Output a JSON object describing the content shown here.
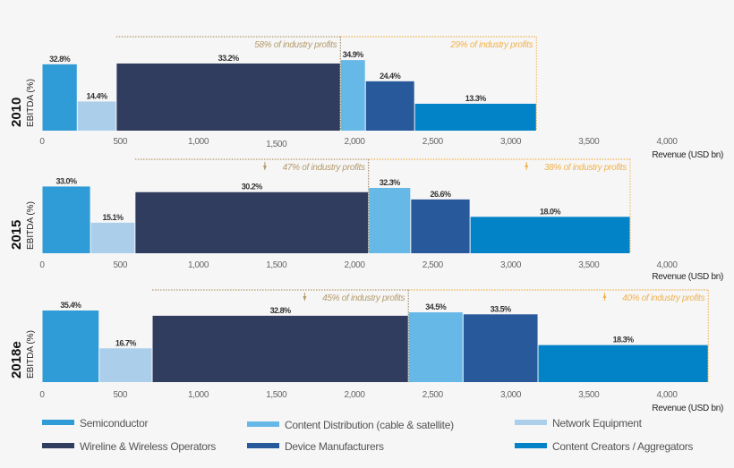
{
  "chart_data": {
    "type": "bar",
    "subtype": "variable-width bar (marimekko)",
    "xlabel": "Revenue (USD bn)",
    "ylabel": "EBITDA (%)",
    "x_ticks": [
      "0",
      "500",
      "1,000",
      "1,500",
      "2,000",
      "2,500",
      "3,000",
      "3,500",
      "4,000"
    ],
    "x_tick_values": [
      0,
      500,
      1000,
      1500,
      2000,
      2500,
      3000,
      3500,
      4000
    ],
    "xlim": [
      0,
      4000
    ],
    "grid": false,
    "legend_position": "bottom",
    "legend": [
      {
        "key": "semi",
        "name": "Semiconductor",
        "color": "#2f9bd7"
      },
      {
        "key": "cd",
        "name": "Content Distribution (cable & satellite)",
        "color": "#66b9e7"
      },
      {
        "key": "net",
        "name": "Network Equipment",
        "color": "#abcfeb"
      },
      {
        "key": "wire",
        "name": "Wireline & Wireless Operators",
        "color": "#313d5e"
      },
      {
        "key": "dev",
        "name": "Device Manufacturers",
        "color": "#27599b"
      },
      {
        "key": "cc",
        "name": "Content Creators / Aggregators",
        "color": "#0282c7"
      }
    ],
    "panels": [
      {
        "year": "2010",
        "segments": [
          {
            "key": "semi",
            "start": 0,
            "end": 225,
            "value": 32.8,
            "label": "32.8%"
          },
          {
            "key": "net",
            "start": 225,
            "end": 475,
            "value": 14.4,
            "label": "14.4%"
          },
          {
            "key": "wire",
            "start": 475,
            "end": 1910,
            "value": 33.2,
            "label": "33.2%"
          },
          {
            "key": "cd",
            "start": 1910,
            "end": 2070,
            "value": 34.9,
            "label": "34.9%"
          },
          {
            "key": "dev",
            "start": 2070,
            "end": 2385,
            "value": 24.4,
            "label": "24.4%"
          },
          {
            "key": "cc",
            "start": 2385,
            "end": 3165,
            "value": 13.3,
            "label": "13.3%"
          }
        ],
        "annotations": [
          {
            "text": "58% of industry profits",
            "arrow": "",
            "from": 475,
            "to": 1910,
            "color": "#b39a6a"
          },
          {
            "text": "29% of industry profits",
            "arrow": "",
            "from": 1910,
            "to": 3165,
            "color": "#f0b24e"
          }
        ]
      },
      {
        "year": "2015",
        "segments": [
          {
            "key": "semi",
            "start": 0,
            "end": 310,
            "value": 33.0,
            "label": "33.0%"
          },
          {
            "key": "net",
            "start": 310,
            "end": 595,
            "value": 15.1,
            "label": "15.1%"
          },
          {
            "key": "wire",
            "start": 595,
            "end": 2090,
            "value": 30.2,
            "label": "30.2%"
          },
          {
            "key": "cd",
            "start": 2090,
            "end": 2360,
            "value": 32.3,
            "label": "32.3%"
          },
          {
            "key": "dev",
            "start": 2360,
            "end": 2740,
            "value": 26.6,
            "label": "26.6%"
          },
          {
            "key": "cc",
            "start": 2740,
            "end": 3765,
            "value": 18.0,
            "label": "18.0%"
          }
        ],
        "annotations": [
          {
            "text": "47% of industry profits",
            "arrow": "down",
            "from": 595,
            "to": 2090,
            "color": "#b39a6a"
          },
          {
            "text": "38% of industry profits",
            "arrow": "up",
            "from": 2090,
            "to": 3765,
            "color": "#f0b24e"
          }
        ]
      },
      {
        "year": "2018e",
        "segments": [
          {
            "key": "semi",
            "start": 0,
            "end": 365,
            "value": 35.4,
            "label": "35.4%"
          },
          {
            "key": "net",
            "start": 365,
            "end": 705,
            "value": 16.7,
            "label": "16.7%"
          },
          {
            "key": "wire",
            "start": 705,
            "end": 2345,
            "value": 32.8,
            "label": "32.8%"
          },
          {
            "key": "cd",
            "start": 2345,
            "end": 2695,
            "value": 34.5,
            "label": "34.5%"
          },
          {
            "key": "dev",
            "start": 2695,
            "end": 3175,
            "value": 33.5,
            "label": "33.5%"
          },
          {
            "key": "cc",
            "start": 3175,
            "end": 4265,
            "value": 18.3,
            "label": "18.3%"
          }
        ],
        "annotations": [
          {
            "text": "45% of industry profits",
            "arrow": "down",
            "from": 705,
            "to": 2345,
            "color": "#b39a6a"
          },
          {
            "text": "40% of industry profits",
            "arrow": "up",
            "from": 2345,
            "to": 4265,
            "color": "#f0b24e"
          }
        ]
      }
    ]
  }
}
